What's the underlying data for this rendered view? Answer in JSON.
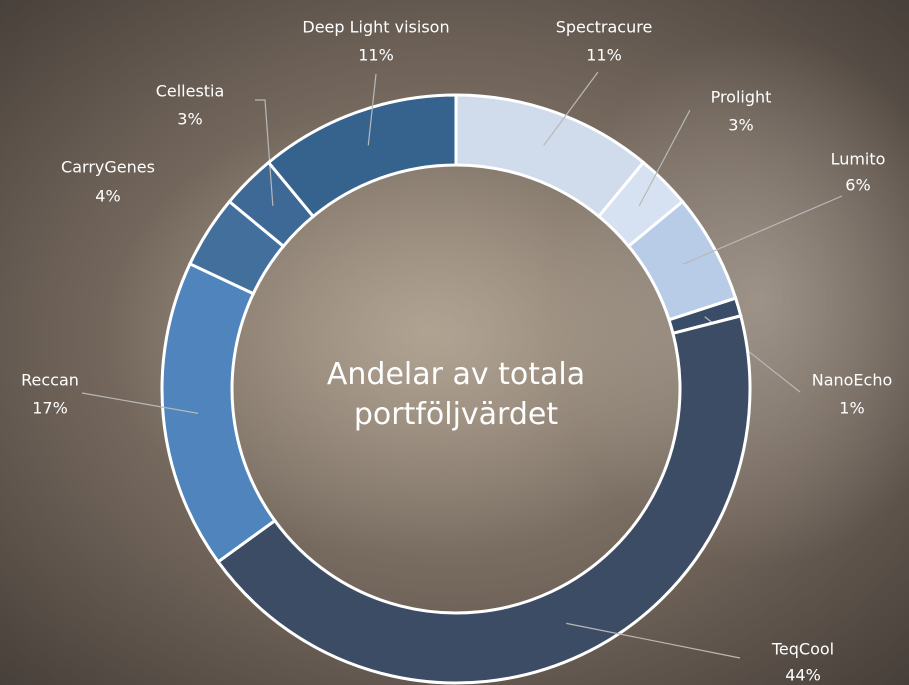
{
  "chart_data": {
    "type": "donut",
    "title": "Andelar av totala portföljvärdet",
    "categories": [
      "Spectracure",
      "Prolight",
      "Lumito",
      "NanoEcho",
      "TeqCool",
      "Reccan",
      "CarryGenes",
      "Cellestia",
      "Deep Light visison"
    ],
    "values": [
      11,
      3,
      6,
      1,
      44,
      17,
      4,
      3,
      11
    ],
    "value_labels": [
      "11%",
      "3%",
      "6%",
      "1%",
      "44%",
      "17%",
      "4%",
      "3%",
      "11%"
    ],
    "colors": [
      "#d0dcec",
      "#d6e1f1",
      "#b8cce7",
      "#3a4d68",
      "#3d4c65",
      "#4f84bc",
      "#436f9d",
      "#3e6997",
      "#36628e"
    ]
  }
}
